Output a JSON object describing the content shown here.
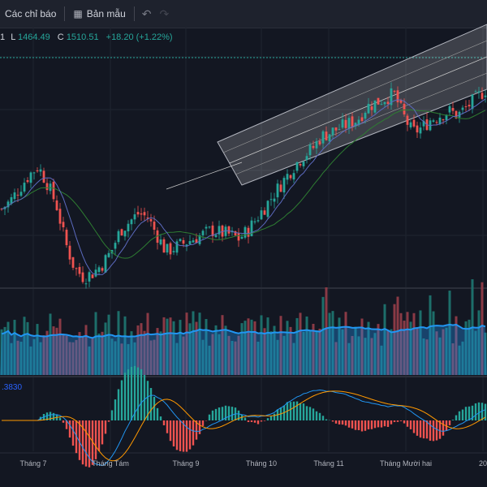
{
  "toolbar": {
    "indicators_label": "Các chỉ báo",
    "templates_label": "Bản mẫu"
  },
  "legend": {
    "o_label": "1",
    "l_label": "L",
    "l_value": "1464.49",
    "c_label": "C",
    "c_value": "1510.51",
    "change": "+18.20 (+1.22%)"
  },
  "macd_value": ".3830",
  "colors": {
    "up": "#26a69a",
    "down": "#ef5350",
    "bg": "#131722",
    "volume_ma": "#2196f3",
    "macd_line": "#2196f3",
    "signal_line": "#ff9800"
  },
  "chart_data": {
    "type": "candlestick",
    "x_ticks": [
      "Tháng 7",
      "Tháng Tám",
      "Tháng 9",
      "Tháng 10",
      "Tháng 11",
      "Tháng Mười hai",
      "20"
    ],
    "price": {
      "approx_range": [
        1280,
        1560
      ],
      "close_path": [
        1370,
        1380,
        1395,
        1410,
        1420,
        1400,
        1375,
        1330,
        1300,
        1290,
        1295,
        1305,
        1320,
        1345,
        1355,
        1365,
        1360,
        1340,
        1320,
        1325,
        1330,
        1335,
        1340,
        1345,
        1342,
        1340,
        1335,
        1345,
        1360,
        1375,
        1390,
        1405,
        1420,
        1432,
        1440,
        1455,
        1460,
        1465,
        1470,
        1475,
        1490,
        1495,
        1500,
        1505,
        1480,
        1460,
        1465,
        1475,
        1480,
        1485,
        1480,
        1490,
        1500,
        1510
      ]
    },
    "volume": {
      "approx_range": [
        0,
        1
      ]
    },
    "macd": {
      "lines": [
        "MACD",
        "Signal"
      ],
      "histogram": true
    }
  }
}
